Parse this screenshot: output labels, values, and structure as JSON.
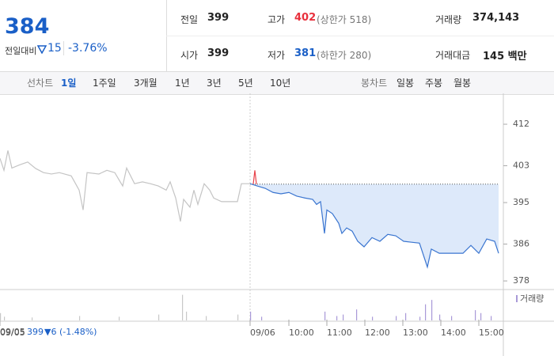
{
  "header": {
    "price": "384",
    "change_label": "전일대비",
    "change": "15",
    "change_pct": "-3.76%"
  },
  "stats": {
    "rows": [
      [
        {
          "label": "전일",
          "value": "399"
        },
        {
          "label": "고가",
          "value": "402",
          "note": "(상한가 518)",
          "tone": "up"
        },
        {
          "label": "거래량",
          "value": "374,143"
        }
      ],
      [
        {
          "label": "시가",
          "value": "399"
        },
        {
          "label": "저가",
          "value": "381",
          "note": "(하한가 280)",
          "tone": "down"
        },
        {
          "label": "거래대금",
          "value": "145 백만"
        }
      ]
    ]
  },
  "tabs": {
    "line_label": "선차트",
    "line_periods": [
      "1일",
      "1주일",
      "3개월",
      "1년",
      "3년",
      "5년",
      "10년"
    ],
    "active": 0,
    "candle_label": "봉차트",
    "candle_periods": [
      "일봉",
      "주봉",
      "월봉"
    ]
  },
  "chart_data": [
    {
      "type": "line",
      "ylim": [
        376.3,
        417.5
      ],
      "yticks": [
        412,
        403,
        395,
        386,
        378
      ],
      "xlim": [
        0,
        126
      ],
      "xticks": [
        {
          "value": 0,
          "label": "09/05"
        },
        {
          "value": 63.2,
          "label": "09/06"
        },
        {
          "value": 73,
          "label": "10:00"
        },
        {
          "value": 82.6,
          "label": "11:00"
        },
        {
          "value": 92.2,
          "label": "12:00"
        },
        {
          "value": 101.8,
          "label": "13:00"
        },
        {
          "value": 111.4,
          "label": "14:00"
        },
        {
          "value": 121,
          "label": "15:00"
        }
      ],
      "prev_close": 399,
      "fill_color": "#dde9fa",
      "series": [
        {
          "color": "#c4c4c4",
          "x": [
            0,
            1,
            2,
            3,
            5,
            7,
            9,
            11,
            13,
            15,
            18,
            20,
            21,
            22,
            25,
            27,
            29,
            31,
            32,
            34,
            36,
            38,
            40,
            42,
            43,
            44.4,
            45.6,
            46.4,
            48,
            49,
            50,
            51.6,
            53,
            54,
            56,
            58,
            60,
            61,
            63.2
          ],
          "values": [
            404.6,
            402.0,
            406.3,
            402.5,
            403.2,
            403.8,
            402.4,
            401.5,
            401.2,
            401.5,
            400.8,
            397.7,
            393.4,
            401.5,
            401.2,
            402.0,
            401.5,
            398.6,
            402.5,
            399.1,
            399.5,
            399.1,
            398.6,
            397.7,
            399.5,
            396.0,
            390.9,
            395.7,
            394.0,
            397.7,
            394.6,
            399.1,
            397.7,
            396.0,
            395.2,
            395.2,
            395.2,
            399.1,
            399.1
          ]
        },
        {
          "color": "#3a75d0",
          "x": [
            63.2,
            65,
            67,
            69,
            71,
            73,
            75,
            77,
            79,
            80,
            81,
            82,
            82.6,
            84,
            85.6,
            86.4,
            87.6,
            89,
            90.4,
            92,
            94,
            96,
            98,
            100,
            102,
            104,
            106,
            108,
            109,
            111,
            114,
            117,
            119,
            121,
            123,
            125,
            126
          ],
          "values": [
            399.1,
            398.6,
            398.1,
            397.2,
            396.9,
            397.2,
            396.4,
            396.0,
            395.7,
            394.6,
            395.2,
            388.3,
            393.4,
            392.6,
            390.5,
            388.3,
            389.5,
            388.8,
            386.6,
            385.4,
            387.4,
            386.6,
            388.1,
            387.8,
            386.6,
            386.4,
            386.2,
            381.0,
            384.9,
            384.0,
            384.0,
            384.0,
            385.7,
            384.0,
            387.1,
            386.6,
            384.0
          ]
        },
        {
          "color": "#e8424a",
          "x": [
            64,
            64.4,
            64.8
          ],
          "values": [
            399,
            402,
            399
          ]
        }
      ]
    },
    {
      "type": "bar",
      "ylim": [
        0,
        40
      ],
      "series": [
        {
          "color": "#c8c8c8",
          "x": [
            0,
            1,
            8,
            20,
            30,
            40,
            46,
            47,
            52,
            60
          ],
          "values": [
            10,
            5,
            4,
            6,
            5,
            8,
            35,
            12,
            6,
            8
          ]
        },
        {
          "name": "거래량",
          "color": "#a99ad8",
          "x": [
            63.2,
            66,
            82,
            85,
            86.6,
            90,
            94,
            100,
            102.4,
            106,
            107.4,
            109,
            111,
            114,
            120,
            121.4,
            124
          ],
          "values": [
            12,
            5,
            12,
            6,
            8,
            15,
            5,
            6,
            10,
            5,
            22,
            28,
            8,
            6,
            14,
            10,
            6
          ]
        }
      ]
    }
  ],
  "footer": {
    "date": "09/05",
    "price": "399",
    "change": "▼6 (-1.48%)"
  }
}
